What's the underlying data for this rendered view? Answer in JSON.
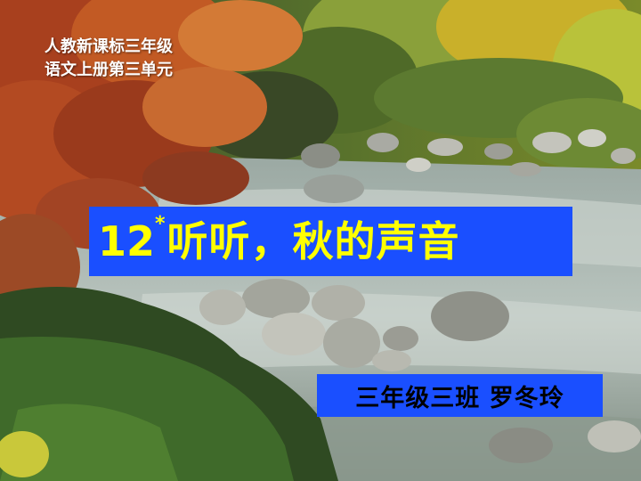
{
  "series": {
    "line1": "人教新课标三年级",
    "line2": "语文上册第三单元"
  },
  "title": {
    "number": "12",
    "star": "*",
    "text": "听听，秋的声音"
  },
  "author": {
    "text": "三年级三班  罗冬玲"
  },
  "colors": {
    "box_background": "#1a4fff",
    "title_text": "#ffff00",
    "author_text": "#000000",
    "series_text": "#ffffff"
  }
}
